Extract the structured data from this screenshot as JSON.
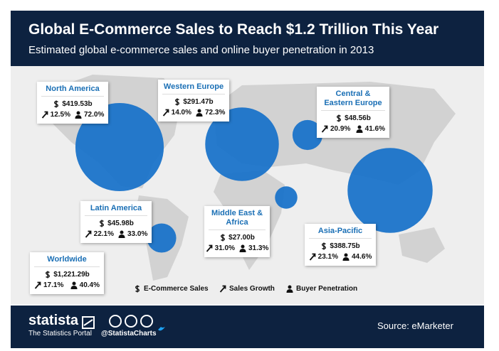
{
  "chart_data": {
    "type": "bubble-map",
    "title": "Global E-Commerce Sales to Reach $1.2 Trillion This Year",
    "subtitle": "Estimated global e-commerce sales and online buyer penetration in 2013",
    "categories": [
      "North America",
      "Western Europe",
      "Central & Eastern Europe",
      "Latin America",
      "Middle East & Africa",
      "Asia-Pacific",
      "Worldwide"
    ],
    "series": [
      {
        "name": "E-Commerce Sales",
        "color": "#1a73c9",
        "values": [
          419.53,
          291.47,
          48.56,
          45.98,
          27.0,
          388.75,
          1221.29
        ],
        "value_labels": [
          "$419.53b",
          "$291.47b",
          "$48.56b",
          "$45.98b",
          "$27.00b",
          "$388.75b",
          "$1,221.29b"
        ]
      },
      {
        "name": "Sales Growth",
        "values": [
          12.5,
          14.0,
          20.9,
          22.1,
          31.0,
          23.1,
          17.1
        ],
        "value_labels": [
          "12.5%",
          "14.0%",
          "20.9%",
          "22.1%",
          "31.0%",
          "23.1%",
          "17.1%"
        ]
      },
      {
        "name": "Buyer Penetration",
        "values": [
          72.0,
          72.3,
          41.6,
          33.0,
          31.3,
          44.6,
          40.4
        ],
        "value_labels": [
          "72.0%",
          "72.3%",
          "41.6%",
          "33.0%",
          "31.3%",
          "44.6%",
          "40.4%"
        ]
      }
    ]
  },
  "footer": {
    "brand": "statista",
    "tagline": "The Statistics Portal",
    "handle": "@StatistaCharts",
    "source": "Source: eMarketer"
  }
}
